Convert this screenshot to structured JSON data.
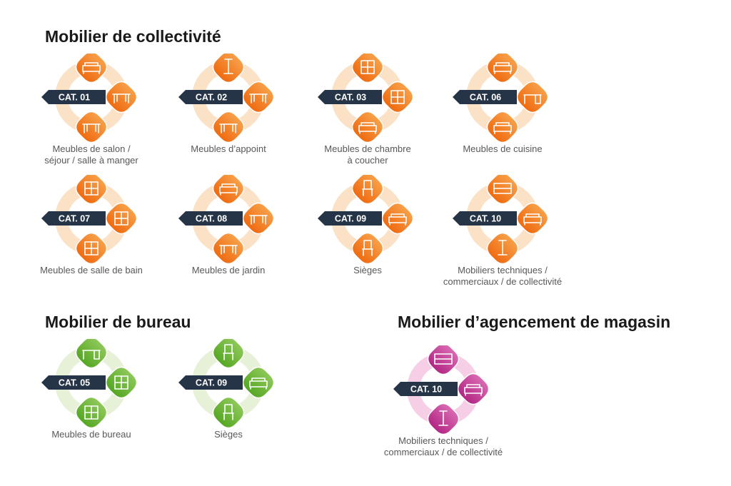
{
  "sections": [
    {
      "id": "collectivite",
      "title": "Mobilier de collectivité"
    },
    {
      "id": "bureau",
      "title": "Mobilier de bureau"
    },
    {
      "id": "magasin",
      "title": "Mobilier d’agencement de magasin"
    }
  ],
  "colors": {
    "orange": {
      "badge": "#ef6a10",
      "badge_light": "#f7a14a",
      "ring": "#fbe1c6"
    },
    "green": {
      "badge": "#55a623",
      "badge_light": "#8fc95a",
      "ring": "#e6f1d8"
    },
    "pink": {
      "badge": "#b22583",
      "badge_light": "#d96bb3",
      "ring": "#f6cfe6"
    },
    "label_bg": "#263447",
    "caption": "#58585a",
    "title": "#1a1a1a"
  },
  "groups": [
    {
      "section": "collectivite",
      "theme": "orange",
      "cat": "CAT. 01",
      "caption": [
        "Meubles de salon /",
        "séjour / salle à manger"
      ],
      "icons": [
        "sofa-icon",
        "dining-table-icon",
        "table-icon"
      ]
    },
    {
      "section": "collectivite",
      "theme": "orange",
      "cat": "CAT. 02",
      "caption": [
        "Meubles d’appoint"
      ],
      "icons": [
        "coat-stand-icon",
        "side-table-icon",
        "coffee-table-icon"
      ]
    },
    {
      "section": "collectivite",
      "theme": "orange",
      "cat": "CAT. 03",
      "caption": [
        "Meubles de chambre",
        "à coucher"
      ],
      "icons": [
        "dresser-icon",
        "wardrobe-icon",
        "bench-icon"
      ]
    },
    {
      "section": "collectivite",
      "theme": "orange",
      "cat": "CAT. 06",
      "caption": [
        "Meubles de cuisine"
      ],
      "icons": [
        "kitchen-unit-icon",
        "kitchen-island-icon",
        "counter-icon"
      ]
    },
    {
      "section": "collectivite",
      "theme": "orange",
      "cat": "CAT. 07",
      "caption": [
        "Meubles de salle de bain"
      ],
      "icons": [
        "column-cabinet-icon",
        "drawer-unit-icon",
        "vanity-icon"
      ]
    },
    {
      "section": "collectivite",
      "theme": "orange",
      "cat": "CAT. 08",
      "caption": [
        "Meubles de jardin"
      ],
      "icons": [
        "garden-bench-icon",
        "bistro-table-icon",
        "picnic-table-icon"
      ]
    },
    {
      "section": "collectivite",
      "theme": "orange",
      "cat": "CAT. 09",
      "caption": [
        "Sièges"
      ],
      "icons": [
        "chair-icon",
        "sofa-icon",
        "office-chair-icon"
      ]
    },
    {
      "section": "collectivite",
      "theme": "orange",
      "cat": "CAT. 10",
      "caption": [
        "Mobiliers techniques /",
        "commerciaux / de collectivité"
      ],
      "icons": [
        "shelf-icon",
        "counter-desk-icon",
        "display-stand-icon"
      ]
    },
    {
      "section": "bureau",
      "theme": "green",
      "cat": "CAT. 05",
      "caption": [
        "Meubles de bureau"
      ],
      "icons": [
        "desk-icon",
        "cabinet-icon",
        "wardrobe-icon"
      ]
    },
    {
      "section": "bureau",
      "theme": "green",
      "cat": "CAT. 09",
      "caption": [
        "Sièges"
      ],
      "icons": [
        "chair-icon",
        "sofa-icon",
        "office-chair-icon"
      ]
    },
    {
      "section": "magasin",
      "theme": "pink",
      "cat": "CAT. 10",
      "caption": [
        "Mobiliers techniques /",
        "commerciaux / de collectivité"
      ],
      "icons": [
        "shelf-icon",
        "counter-desk-icon",
        "display-stand-icon"
      ]
    }
  ]
}
